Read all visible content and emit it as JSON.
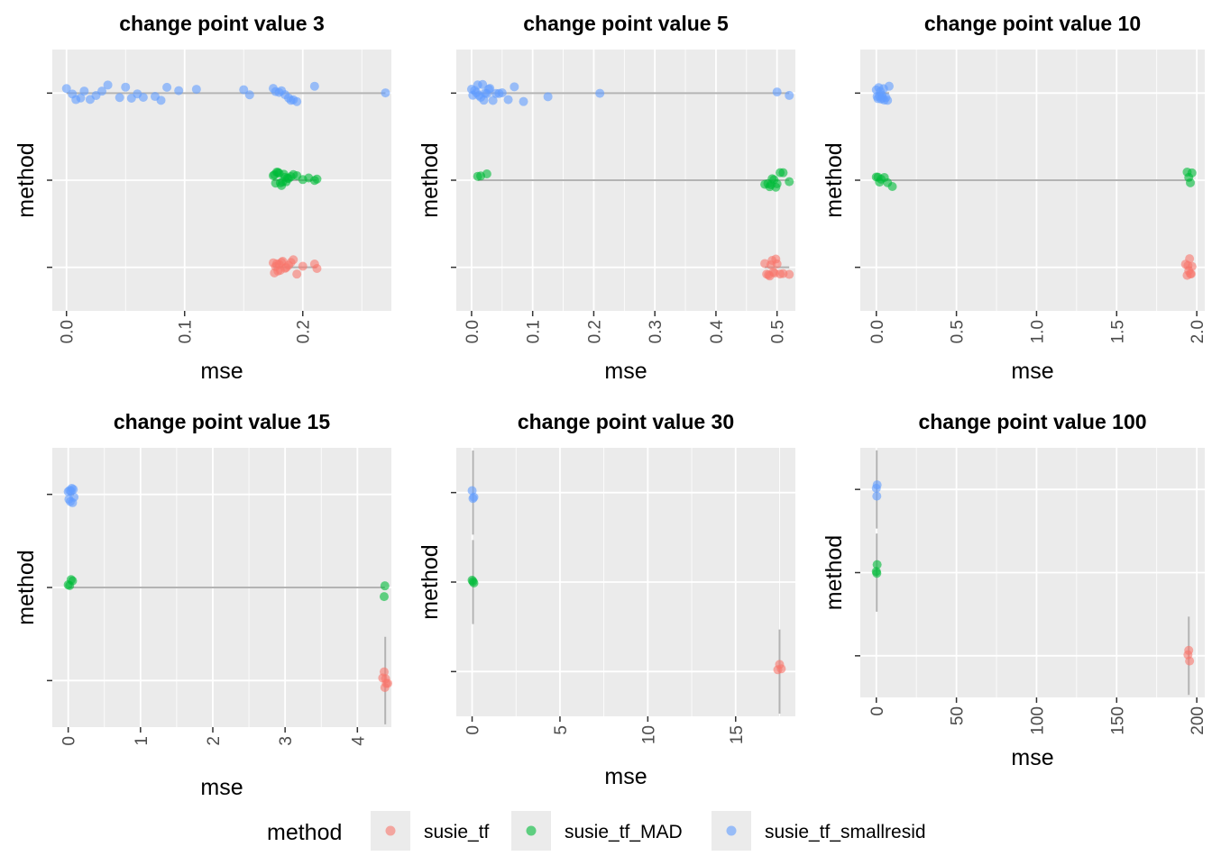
{
  "legend": {
    "title": "method",
    "items": [
      {
        "label": "susie_tf",
        "color": "#F8766D"
      },
      {
        "label": "susie_tf_MAD",
        "color": "#00BA38"
      },
      {
        "label": "susie_tf_smallresid",
        "color": "#619CFF"
      }
    ]
  },
  "chart_data": [
    {
      "type": "scatter",
      "title": "change point value 3",
      "xlabel": "mse",
      "ylabel": "method",
      "xlim": [
        -0.012,
        0.275
      ],
      "xticks": [
        0.0,
        0.1,
        0.2
      ],
      "xtick_labels": [
        "0.0",
        "0.1",
        "0.2"
      ],
      "categories": [
        "susie_tf_smallresid",
        "susie_tf_MAD",
        "susie_tf"
      ],
      "grid": true,
      "series": [
        {
          "name": "susie_tf_smallresid",
          "min": 0.0,
          "max": 0.27,
          "points": [
            0.0,
            0.005,
            0.008,
            0.012,
            0.015,
            0.02,
            0.025,
            0.03,
            0.035,
            0.045,
            0.05,
            0.055,
            0.06,
            0.065,
            0.075,
            0.08,
            0.085,
            0.095,
            0.11,
            0.15,
            0.155,
            0.175,
            0.177,
            0.18,
            0.182,
            0.185,
            0.188,
            0.19,
            0.192,
            0.195,
            0.21,
            0.27
          ]
        },
        {
          "name": "susie_tf_MAD",
          "min": 0.175,
          "max": 0.212,
          "points": [
            0.175,
            0.176,
            0.177,
            0.178,
            0.179,
            0.18,
            0.181,
            0.182,
            0.183,
            0.184,
            0.185,
            0.186,
            0.187,
            0.188,
            0.19,
            0.192,
            0.195,
            0.2,
            0.205,
            0.21,
            0.212
          ]
        },
        {
          "name": "susie_tf",
          "min": 0.175,
          "max": 0.212,
          "points": [
            0.175,
            0.176,
            0.177,
            0.178,
            0.179,
            0.18,
            0.181,
            0.182,
            0.183,
            0.185,
            0.186,
            0.188,
            0.19,
            0.192,
            0.195,
            0.2,
            0.21,
            0.212
          ]
        }
      ]
    },
    {
      "type": "scatter",
      "title": "change point value 5",
      "xlabel": "mse",
      "ylabel": "method",
      "xlim": [
        -0.025,
        0.53
      ],
      "xticks": [
        0.0,
        0.1,
        0.2,
        0.3,
        0.4,
        0.5
      ],
      "xtick_labels": [
        "0.0",
        "0.1",
        "0.2",
        "0.3",
        "0.4",
        "0.5"
      ],
      "categories": [
        "susie_tf_smallresid",
        "susie_tf_MAD",
        "susie_tf"
      ],
      "grid": true,
      "series": [
        {
          "name": "susie_tf_smallresid",
          "min": 0.0,
          "max": 0.52,
          "points": [
            0.0,
            0.002,
            0.005,
            0.008,
            0.01,
            0.012,
            0.015,
            0.018,
            0.02,
            0.022,
            0.025,
            0.028,
            0.03,
            0.035,
            0.04,
            0.045,
            0.05,
            0.06,
            0.07,
            0.085,
            0.125,
            0.21,
            0.5,
            0.52
          ]
        },
        {
          "name": "susie_tf_MAD",
          "min": 0.01,
          "max": 0.52,
          "points": [
            0.01,
            0.015,
            0.025,
            0.48,
            0.485,
            0.488,
            0.49,
            0.492,
            0.495,
            0.498,
            0.5,
            0.505,
            0.51,
            0.52
          ]
        },
        {
          "name": "susie_tf",
          "min": 0.48,
          "max": 0.52,
          "points": [
            0.48,
            0.483,
            0.486,
            0.488,
            0.49,
            0.492,
            0.494,
            0.496,
            0.498,
            0.5,
            0.505,
            0.51,
            0.52
          ]
        }
      ]
    },
    {
      "type": "scatter",
      "title": "change point value 10",
      "xlabel": "mse",
      "ylabel": "method",
      "xlim": [
        -0.1,
        2.05
      ],
      "xticks": [
        0.0,
        0.5,
        1.0,
        1.5,
        2.0
      ],
      "xtick_labels": [
        "0.0",
        "0.5",
        "1.0",
        "1.5",
        "2.0"
      ],
      "categories": [
        "susie_tf_smallresid",
        "susie_tf_MAD",
        "susie_tf"
      ],
      "grid": true,
      "series": [
        {
          "name": "susie_tf_smallresid",
          "min": 0.0,
          "max": 0.08,
          "points": [
            0.0,
            0.005,
            0.01,
            0.015,
            0.02,
            0.025,
            0.03,
            0.035,
            0.04,
            0.045,
            0.05,
            0.06,
            0.07,
            0.08
          ]
        },
        {
          "name": "susie_tf_MAD",
          "min": 0.0,
          "max": 1.97,
          "points": [
            0.0,
            0.01,
            0.02,
            0.03,
            0.05,
            0.07,
            0.1,
            1.94,
            1.95,
            1.96,
            1.97
          ]
        },
        {
          "name": "susie_tf",
          "min": 1.93,
          "max": 1.97,
          "points": [
            1.93,
            1.94,
            1.945,
            1.95,
            1.955,
            1.96,
            1.965,
            1.97
          ]
        }
      ]
    },
    {
      "type": "scatter",
      "title": "change point value 15",
      "xlabel": "mse",
      "ylabel": "method",
      "xlim": [
        -0.22,
        4.47
      ],
      "xticks": [
        0,
        1,
        2,
        3,
        4
      ],
      "xtick_labels": [
        "0",
        "1",
        "2",
        "3",
        "4"
      ],
      "categories": [
        "susie_tf_smallresid",
        "susie_tf_MAD",
        "susie_tf"
      ],
      "grid": true,
      "series": [
        {
          "name": "susie_tf_smallresid",
          "min": 0.0,
          "max": 0.08,
          "points": [
            0.0,
            0.01,
            0.02,
            0.03,
            0.04,
            0.05,
            0.06,
            0.07,
            0.08
          ]
        },
        {
          "name": "susie_tf_MAD",
          "min": 0.0,
          "max": 4.38,
          "points": [
            0.0,
            0.02,
            0.04,
            0.06,
            4.37,
            4.38
          ]
        },
        {
          "name": "susie_tf",
          "min": 4.35,
          "max": 4.42,
          "points": [
            4.35,
            4.37,
            4.38,
            4.39,
            4.4,
            4.42
          ]
        }
      ]
    },
    {
      "type": "scatter",
      "title": "change point value 30",
      "xlabel": "mse",
      "ylabel": "method",
      "xlim": [
        -0.9,
        18.4
      ],
      "xticks": [
        0,
        5,
        10,
        15
      ],
      "xtick_labels": [
        "0",
        "5",
        "10",
        "15"
      ],
      "categories": [
        "susie_tf_smallresid",
        "susie_tf_MAD",
        "susie_tf"
      ],
      "grid": true,
      "series": [
        {
          "name": "susie_tf_smallresid",
          "min": 0.0,
          "max": 0.1,
          "points": [
            0.0,
            0.05,
            0.1
          ]
        },
        {
          "name": "susie_tf_MAD",
          "min": 0.0,
          "max": 0.1,
          "points": [
            0.0,
            0.05,
            0.1
          ]
        },
        {
          "name": "susie_tf",
          "min": 17.4,
          "max": 17.6,
          "points": [
            17.4,
            17.5,
            17.6
          ]
        }
      ]
    },
    {
      "type": "scatter",
      "title": "change point value 100",
      "xlabel": "mse",
      "ylabel": "method",
      "xlim": [
        -10,
        205
      ],
      "xticks": [
        0,
        50,
        100,
        150,
        200
      ],
      "xtick_labels": [
        "0",
        "50",
        "100",
        "150",
        "200"
      ],
      "categories": [
        "susie_tf_smallresid",
        "susie_tf_MAD",
        "susie_tf"
      ],
      "grid": true,
      "series": [
        {
          "name": "susie_tf_smallresid",
          "min": 0.0,
          "max": 0.5,
          "points": [
            0.0,
            0.3,
            0.5
          ]
        },
        {
          "name": "susie_tf_MAD",
          "min": 0.0,
          "max": 0.5,
          "points": [
            0.0,
            0.3,
            0.5
          ]
        },
        {
          "name": "susie_tf",
          "min": 194.5,
          "max": 195.5,
          "points": [
            194.5,
            195,
            195.5
          ]
        }
      ]
    }
  ]
}
